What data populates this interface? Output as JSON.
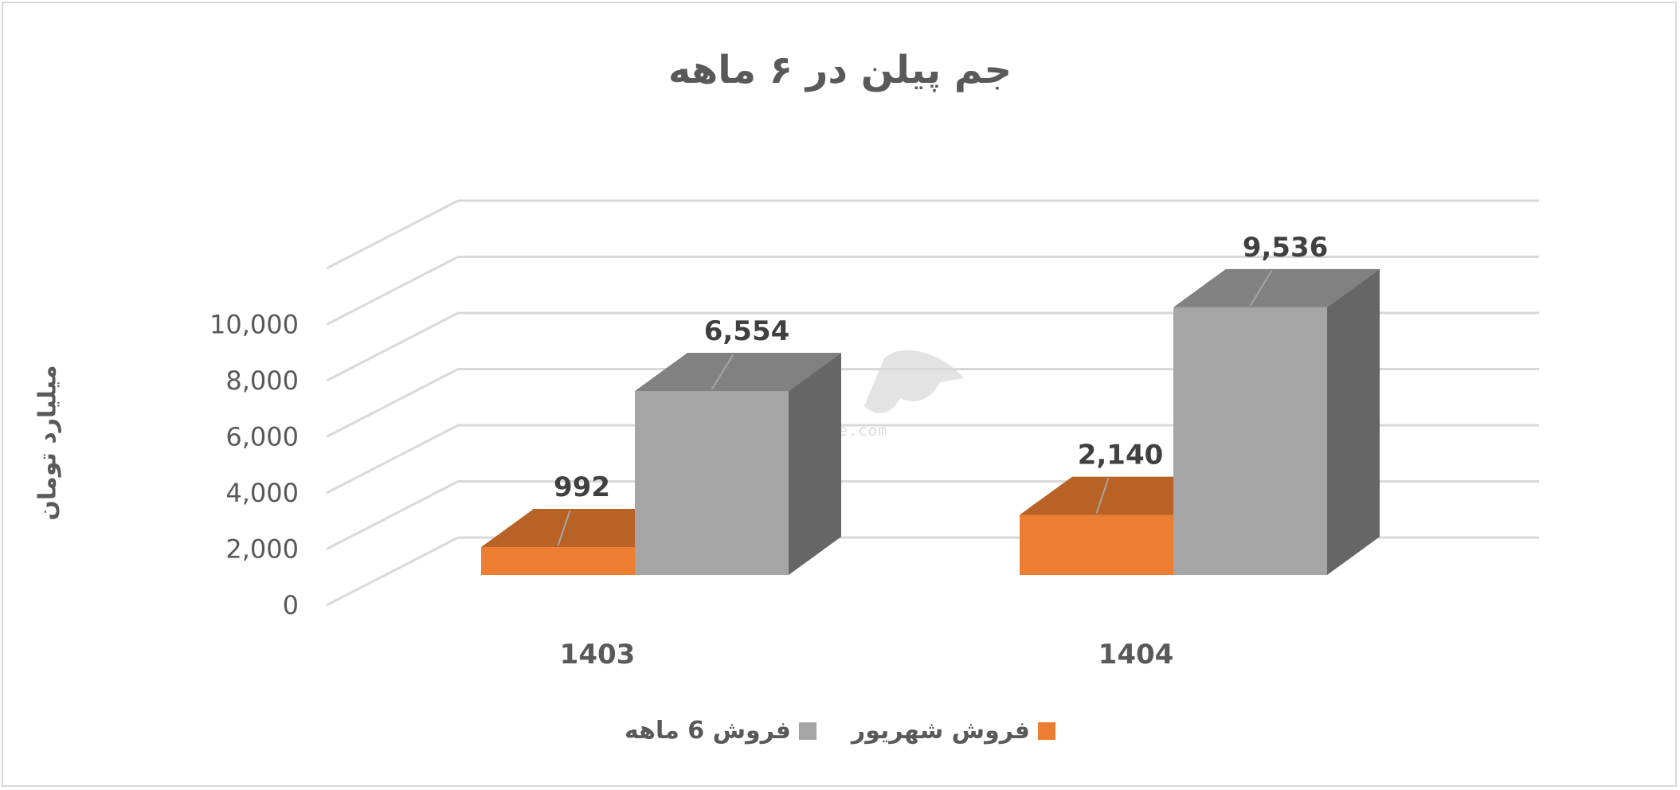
{
  "chart_data": {
    "type": "bar",
    "title": "جم پیلن در ۶ ماهه",
    "ylabel": "میلیارد تومان",
    "xlabel": "",
    "categories": [
      "1403",
      "1404"
    ],
    "series": [
      {
        "name": "فروش شهریور",
        "values": [
          992,
          2140
        ],
        "value_labels": [
          "992",
          "2,140"
        ],
        "color": "#ed7d31"
      },
      {
        "name": "فروش 6 ماهه",
        "values": [
          6554,
          9536
        ],
        "value_labels": [
          "6,554",
          "9,536"
        ],
        "color": "#a5a5a5"
      }
    ],
    "yticks": [
      "0",
      "2,000",
      "4,000",
      "6,000",
      "8,000",
      "10,000"
    ],
    "ylim": [
      0,
      12000
    ],
    "grid": true,
    "legend_position": "bottom",
    "style": "3d-column"
  },
  "watermark": {
    "text": "nabzebourse.com",
    "logo": "نبض بورس"
  }
}
